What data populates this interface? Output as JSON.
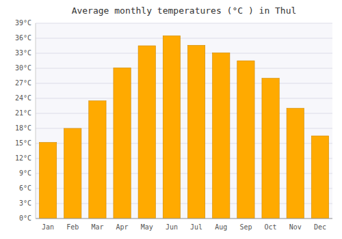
{
  "chart_data": {
    "type": "bar",
    "title": "Average monthly temperatures (°C ) in Thul",
    "categories": [
      "Jan",
      "Feb",
      "Mar",
      "Apr",
      "May",
      "Jun",
      "Jul",
      "Aug",
      "Sep",
      "Oct",
      "Nov",
      "Dec"
    ],
    "values": [
      15.2,
      18.0,
      23.5,
      30.1,
      34.5,
      36.5,
      34.6,
      33.1,
      31.5,
      28.0,
      22.0,
      16.5
    ],
    "color": "#FFAA00",
    "ylim": [
      0,
      39
    ],
    "yticks": [
      {
        "value": 0,
        "label": "0°C"
      },
      {
        "value": 3,
        "label": "3°C"
      },
      {
        "value": 6,
        "label": "6°C"
      },
      {
        "value": 9,
        "label": "9°C"
      },
      {
        "value": 12,
        "label": "12°C"
      },
      {
        "value": 15,
        "label": "15°C"
      },
      {
        "value": 18,
        "label": "18°C"
      },
      {
        "value": 21,
        "label": "21°C"
      },
      {
        "value": 24,
        "label": "24°C"
      },
      {
        "value": 27,
        "label": "27°C"
      },
      {
        "value": 30,
        "label": "30°C"
      },
      {
        "value": 33,
        "label": "33°C"
      },
      {
        "value": 36,
        "label": "36°C"
      },
      {
        "value": 39,
        "label": "39°C"
      }
    ],
    "grid": true
  }
}
